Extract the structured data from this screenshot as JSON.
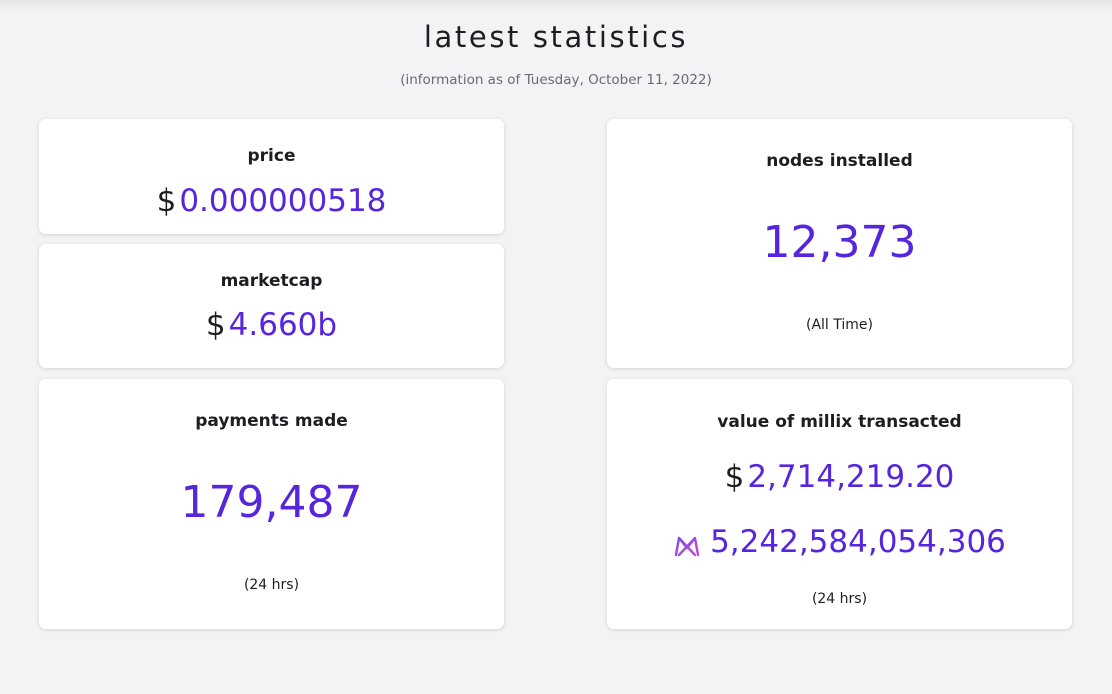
{
  "header": {
    "title": "latest statistics",
    "subtitle": "(information as of Tuesday, October 11, 2022)"
  },
  "cards": {
    "price": {
      "label": "price",
      "currency_symbol": "$",
      "value": "0.000000518"
    },
    "marketcap": {
      "label": "marketcap",
      "currency_symbol": "$",
      "value": "4.660b"
    },
    "payments": {
      "label": "payments made",
      "value": "179,487",
      "period": "(24 hrs)"
    },
    "nodes": {
      "label": "nodes installed",
      "value": "12,373",
      "period": "(All Time)"
    },
    "transacted": {
      "label": "value of millix transacted",
      "currency_symbol": "$",
      "usd_value": "2,714,219.20",
      "millix_icon": "millix-logo-icon",
      "millix_value": "5,242,584,054,306",
      "period": "(24 hrs)"
    }
  },
  "colors": {
    "accent": "#5526dd",
    "background": "#f2f3f5",
    "card": "#ffffff",
    "text": "#1d1d22"
  }
}
